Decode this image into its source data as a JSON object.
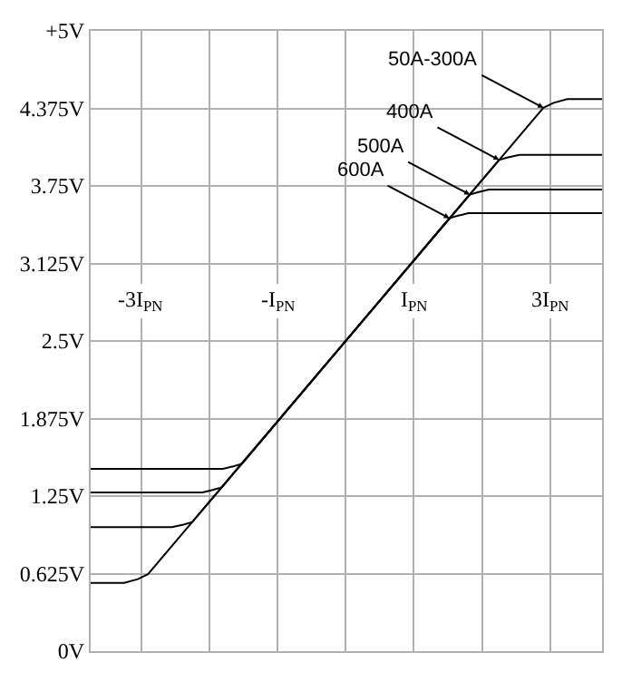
{
  "chart_data": {
    "type": "line",
    "xlim": [
      -3.74,
      3.76
    ],
    "ylim": [
      0,
      5
    ],
    "xticks": [
      {
        "value": -3,
        "label": "-3I$_{PN}$"
      },
      {
        "value": -2,
        "label": null
      },
      {
        "value": -1,
        "label": "-I$_{PN}$"
      },
      {
        "value": 0,
        "label": null
      },
      {
        "value": 1,
        "label": "I$_{PN}$"
      },
      {
        "value": 2,
        "label": null
      },
      {
        "value": 3,
        "label": "3I$_{PN}$"
      }
    ],
    "yticks": [
      {
        "value": 0,
        "label": "0V"
      },
      {
        "value": 0.625,
        "label": "0.625V"
      },
      {
        "value": 1.25,
        "label": "1.25V"
      },
      {
        "value": 1.875,
        "label": "1.875V"
      },
      {
        "value": 2.5,
        "label": "2.5V"
      },
      {
        "value": 3.125,
        "label": "3.125V"
      },
      {
        "value": 3.75,
        "label": "3.75V"
      },
      {
        "value": 4.375,
        "label": "4.375V"
      },
      {
        "value": 5,
        "label": "+5V"
      }
    ],
    "grid": true,
    "legend": false,
    "marker": "none",
    "line_style": "solid",
    "series": [
      {
        "name": "50A-300A",
        "color": "#000000",
        "x": [
          -3.74,
          -3.25,
          -3.05,
          -2.9,
          2.9,
          3.05,
          3.25,
          3.76
        ],
        "values": [
          0.55,
          0.55,
          0.58,
          0.62,
          4.38,
          4.42,
          4.45,
          4.45
        ]
      },
      {
        "name": "400A",
        "color": "#000000",
        "x": [
          -3.74,
          -2.55,
          -2.38,
          -2.25,
          2.25,
          2.38,
          2.55,
          3.76
        ],
        "values": [
          1.0,
          1.0,
          1.02,
          1.04,
          3.96,
          3.98,
          4.0,
          4.0
        ]
      },
      {
        "name": "500A",
        "color": "#000000",
        "x": [
          -3.74,
          -2.1,
          -1.95,
          -1.82,
          1.82,
          1.95,
          2.1,
          3.76
        ],
        "values": [
          1.28,
          1.28,
          1.3,
          1.32,
          3.68,
          3.7,
          3.72,
          3.72
        ]
      },
      {
        "name": "600A",
        "color": "#000000",
        "x": [
          -3.74,
          -1.8,
          -1.65,
          -1.52,
          1.52,
          1.65,
          1.8,
          3.76
        ],
        "values": [
          1.47,
          1.47,
          1.49,
          1.51,
          3.49,
          3.51,
          3.53,
          3.53
        ]
      }
    ]
  }
}
